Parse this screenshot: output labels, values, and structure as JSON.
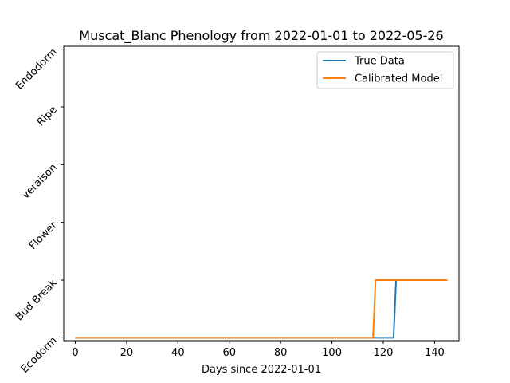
{
  "chart_data": {
    "type": "line",
    "title": "Muscat_Blanc Phenology from 2022-01-01 to 2022-05-26",
    "xlabel": "Days since 2022-01-01",
    "ylabel": "",
    "xlim": [
      -4.5,
      149.5
    ],
    "ylim": [
      -0.05,
      5.05
    ],
    "x_ticks": [
      0,
      20,
      40,
      60,
      80,
      100,
      120,
      140
    ],
    "y_ticks": [
      {
        "value": 0,
        "label": "Ecodorm"
      },
      {
        "value": 1,
        "label": "Bud Break"
      },
      {
        "value": 2,
        "label": "Flower"
      },
      {
        "value": 3,
        "label": "veraison"
      },
      {
        "value": 4,
        "label": "Ripe"
      },
      {
        "value": 5,
        "label": "Endodorm"
      }
    ],
    "grid": false,
    "legend_position": "top-right",
    "series": [
      {
        "name": "True Data",
        "color": "#1f77b4",
        "x": [
          0,
          124,
          125,
          145
        ],
        "y": [
          0,
          0,
          1,
          1
        ]
      },
      {
        "name": "Calibrated Model",
        "color": "#ff7f0e",
        "x": [
          0,
          116,
          117,
          145
        ],
        "y": [
          0,
          0,
          1,
          1
        ]
      }
    ]
  }
}
